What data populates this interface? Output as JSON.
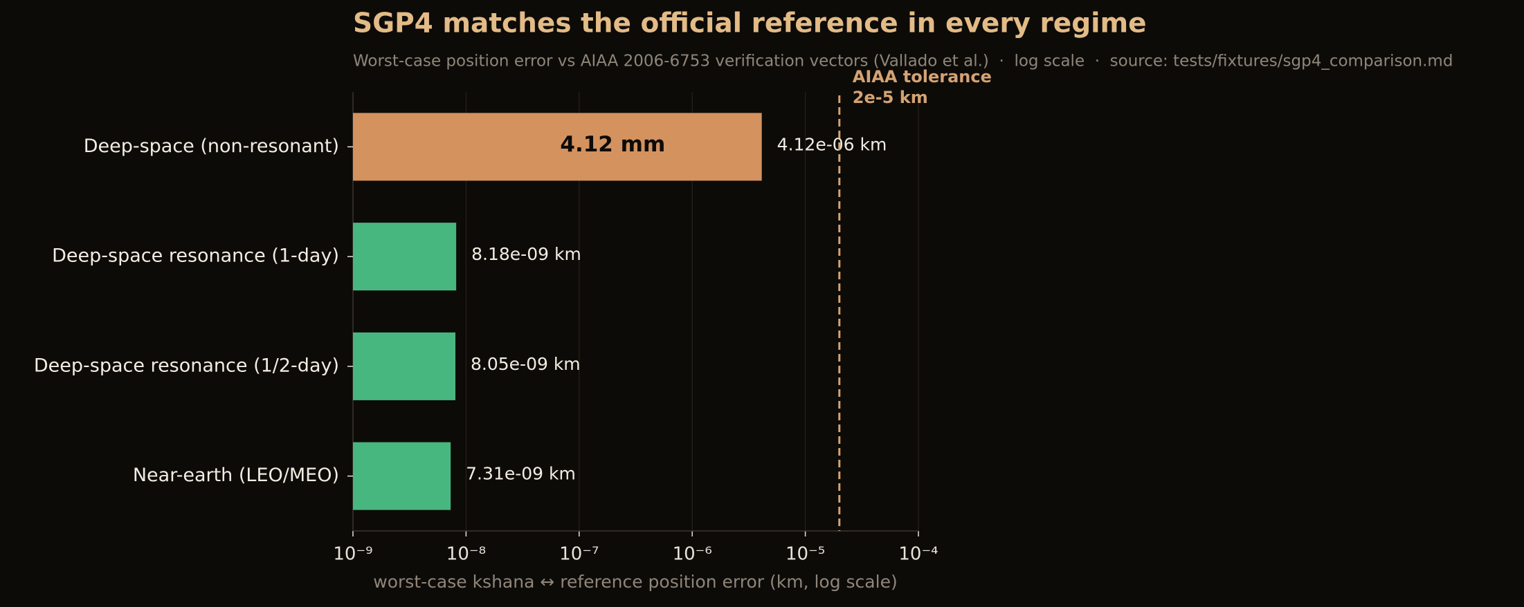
{
  "chart_data": {
    "type": "barh",
    "title": "SGP4 matches the official reference in every regime",
    "subtitle": "Worst-case position error vs AIAA 2006-6753 verification vectors (Vallado et al.)  ·  log scale  ·  source: tests/fixtures/sgp4_comparison.md",
    "xlabel": "worst-case kshana ↔ reference position error (km, log scale)",
    "categories": [
      "Deep-space (non-resonant)",
      "Deep-space resonance (1-day)",
      "Deep-space resonance (1/2-day)",
      "Near-earth (LEO/MEO)"
    ],
    "values": [
      4.12e-06,
      8.18e-09,
      8.05e-09,
      7.31e-09
    ],
    "value_labels": [
      "4.12e-06 km",
      "8.18e-09 km",
      "8.05e-09 km",
      "7.31e-09 km"
    ],
    "colors": [
      "#d4925f",
      "#48b77f",
      "#48b77f",
      "#48b77f"
    ],
    "bar_annotation": {
      "index": 0,
      "text": "4.12 mm"
    },
    "tolerance": {
      "value": 2e-05,
      "label": [
        "AIAA tolerance",
        "2e-5 km"
      ],
      "color": "#d4a373"
    },
    "xscale": "log",
    "xlim": [
      1e-09,
      0.0001
    ],
    "xticks": [
      {
        "value": 1e-09,
        "label": "10⁻⁹"
      },
      {
        "value": 1e-08,
        "label": "10⁻⁸"
      },
      {
        "value": 1e-07,
        "label": "10⁻⁷"
      },
      {
        "value": 1e-06,
        "label": "10⁻⁶"
      },
      {
        "value": 1e-05,
        "label": "10⁻⁵"
      },
      {
        "value": 0.0001,
        "label": "10⁻⁴"
      }
    ],
    "grid": true
  }
}
